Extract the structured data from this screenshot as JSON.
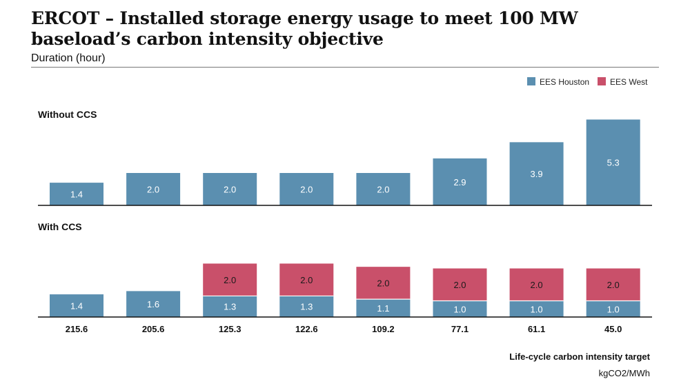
{
  "title": "ERCOT – Installed storage energy usage to meet 100 MW baseload’s carbon intensity objective",
  "subtitle": "Duration (hour)",
  "colors": {
    "houston": "#5b8fb0",
    "west": "#c9506a",
    "axis": "#111111"
  },
  "chart_data": [
    {
      "type": "bar",
      "panel_label": "Without CCS",
      "categories": [
        "215.6",
        "205.6",
        "125.3",
        "122.6",
        "109.2",
        "77.1",
        "61.1",
        "45.0"
      ],
      "series": [
        {
          "name": "EES Houston",
          "values": [
            1.4,
            2.0,
            2.0,
            2.0,
            2.0,
            2.9,
            3.9,
            5.3
          ]
        }
      ]
    },
    {
      "type": "bar",
      "stacked": true,
      "panel_label": "With CCS",
      "categories": [
        "215.6",
        "205.6",
        "125.3",
        "122.6",
        "109.2",
        "77.1",
        "61.1",
        "45.0"
      ],
      "series": [
        {
          "name": "EES Houston",
          "values": [
            1.4,
            1.6,
            1.3,
            1.3,
            1.1,
            1.0,
            1.0,
            1.0
          ]
        },
        {
          "name": "EES West",
          "values": [
            null,
            null,
            2.0,
            2.0,
            2.0,
            2.0,
            2.0,
            2.0
          ]
        }
      ]
    }
  ],
  "legend": {
    "items": [
      "EES Houston",
      "EES West"
    ],
    "position": "top-right"
  },
  "xlabel": "Life-cycle carbon intensity target",
  "xunit": "kgCO2/MWh"
}
